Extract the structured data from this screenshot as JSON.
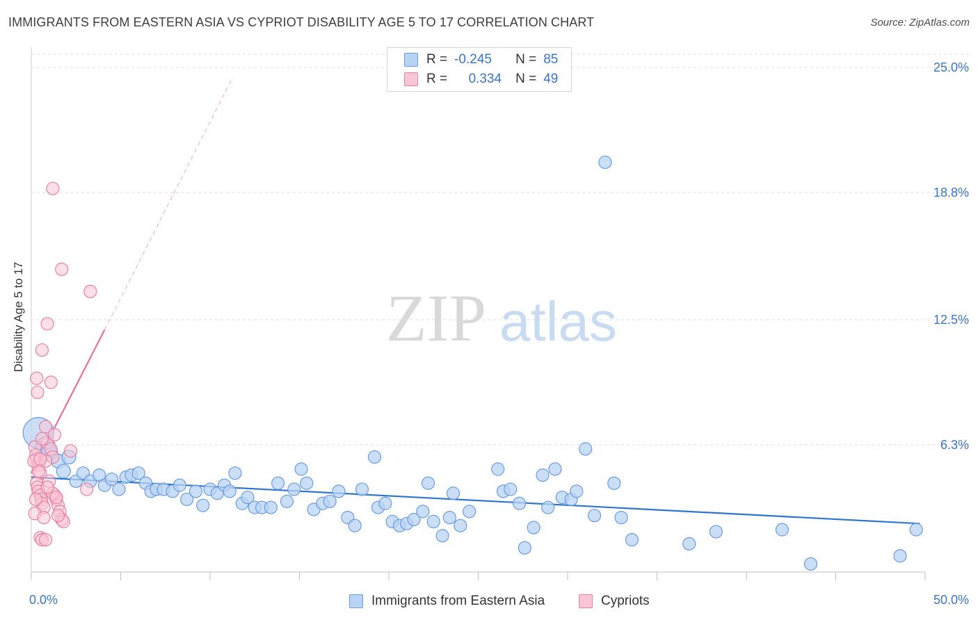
{
  "title": "IMMIGRANTS FROM EASTERN ASIA VS CYPRIOT DISABILITY AGE 5 TO 17 CORRELATION CHART",
  "source": "Source: ZipAtlas.com",
  "watermark": {
    "zip": "ZIP",
    "atlas": "atlas"
  },
  "legend_top": {
    "rows": [
      {
        "r_label": "R =",
        "r_value": "-0.245",
        "n_label": "N =",
        "n_value": "85"
      },
      {
        "r_label": "R =",
        "r_value": "0.334",
        "n_label": "N =",
        "n_value": "49"
      }
    ]
  },
  "legend_bottom": {
    "series1": "Immigrants from Eastern Asia",
    "series2": "Cypriots"
  },
  "colors": {
    "blue_fill": "#b8d3f3",
    "blue_stroke": "#6a9be0",
    "blue_line": "#2e74d0",
    "pink_fill": "#f9c6d6",
    "pink_stroke": "#ea7fa2",
    "pink_line": "#e8719a",
    "tick_text": "#3a74c9",
    "grid": "#dddddd"
  },
  "chart_data": {
    "type": "scatter",
    "title": "IMMIGRANTS FROM EASTERN ASIA VS CYPRIOT DISABILITY AGE 5 TO 17 CORRELATION CHART",
    "xlabel": "",
    "ylabel": "Disability Age 5 to 17",
    "xlim": [
      0,
      50
    ],
    "ylim": [
      0,
      25
    ],
    "x_tick_labels": [
      "0.0%",
      "50.0%"
    ],
    "y_ticks": [
      6.3,
      12.5,
      18.8,
      25.0
    ],
    "y_tick_labels": [
      "6.3%",
      "12.5%",
      "18.8%",
      "25.0%"
    ],
    "series": [
      {
        "name": "Immigrants from Eastern Asia",
        "r": -0.245,
        "n": 85,
        "trend": {
          "x0": 0,
          "y0": 4.7,
          "x1": 49.7,
          "y1": 2.4
        },
        "points": [
          [
            0.4,
            6.9,
            22
          ],
          [
            0.8,
            6.2,
            14
          ],
          [
            1.0,
            5.9,
            12
          ],
          [
            1.5,
            5.5,
            10
          ],
          [
            1.8,
            5.0,
            10
          ],
          [
            2.1,
            5.7,
            10
          ],
          [
            2.5,
            4.5,
            9
          ],
          [
            2.9,
            4.9,
            9
          ],
          [
            3.3,
            4.5,
            9
          ],
          [
            3.8,
            4.8,
            9
          ],
          [
            4.1,
            4.3,
            9
          ],
          [
            4.5,
            4.6,
            9
          ],
          [
            4.9,
            4.1,
            9
          ],
          [
            5.3,
            4.7,
            9
          ],
          [
            5.6,
            4.8,
            9
          ],
          [
            6.0,
            4.9,
            9
          ],
          [
            6.4,
            4.4,
            9
          ],
          [
            6.7,
            4.0,
            9
          ],
          [
            7.0,
            4.1,
            9
          ],
          [
            7.4,
            4.1,
            9
          ],
          [
            7.9,
            4.0,
            9
          ],
          [
            8.3,
            4.3,
            9
          ],
          [
            8.7,
            3.6,
            9
          ],
          [
            9.2,
            4.0,
            9
          ],
          [
            9.6,
            3.3,
            9
          ],
          [
            10.0,
            4.1,
            9
          ],
          [
            10.4,
            3.9,
            9
          ],
          [
            10.8,
            4.3,
            9
          ],
          [
            11.1,
            4.0,
            9
          ],
          [
            11.4,
            4.9,
            9
          ],
          [
            11.8,
            3.4,
            9
          ],
          [
            12.1,
            3.7,
            9
          ],
          [
            12.5,
            3.2,
            9
          ],
          [
            12.9,
            3.2,
            9
          ],
          [
            13.4,
            3.2,
            9
          ],
          [
            13.8,
            4.4,
            9
          ],
          [
            14.3,
            3.5,
            9
          ],
          [
            14.7,
            4.1,
            9
          ],
          [
            15.1,
            5.1,
            9
          ],
          [
            15.4,
            4.4,
            9
          ],
          [
            15.8,
            3.1,
            9
          ],
          [
            16.3,
            3.4,
            9
          ],
          [
            16.7,
            3.5,
            9
          ],
          [
            17.2,
            4.0,
            9
          ],
          [
            17.7,
            2.7,
            9
          ],
          [
            18.1,
            2.3,
            9
          ],
          [
            18.5,
            4.1,
            9
          ],
          [
            19.2,
            5.7,
            9
          ],
          [
            19.4,
            3.2,
            9
          ],
          [
            19.8,
            3.4,
            9
          ],
          [
            20.2,
            2.5,
            9
          ],
          [
            20.6,
            2.3,
            9
          ],
          [
            21.0,
            2.4,
            9
          ],
          [
            21.4,
            2.6,
            9
          ],
          [
            21.9,
            3.0,
            9
          ],
          [
            22.2,
            4.4,
            9
          ],
          [
            22.5,
            2.5,
            9
          ],
          [
            23.0,
            1.8,
            9
          ],
          [
            23.4,
            2.7,
            9
          ],
          [
            23.6,
            3.9,
            9
          ],
          [
            24.0,
            2.3,
            9
          ],
          [
            24.5,
            3.0,
            9
          ],
          [
            26.1,
            5.1,
            9
          ],
          [
            26.4,
            4.0,
            9
          ],
          [
            26.8,
            4.1,
            9
          ],
          [
            27.3,
            3.4,
            9
          ],
          [
            27.6,
            1.2,
            9
          ],
          [
            28.1,
            2.2,
            9
          ],
          [
            28.6,
            4.8,
            9
          ],
          [
            28.9,
            3.2,
            9
          ],
          [
            29.3,
            5.1,
            9
          ],
          [
            29.7,
            3.7,
            9
          ],
          [
            30.2,
            3.6,
            9
          ],
          [
            30.5,
            4.0,
            9
          ],
          [
            31.0,
            6.1,
            9
          ],
          [
            31.5,
            2.8,
            9
          ],
          [
            32.1,
            20.3,
            9
          ],
          [
            32.6,
            4.4,
            9
          ],
          [
            33.0,
            2.7,
            9
          ],
          [
            33.6,
            1.6,
            9
          ],
          [
            36.8,
            1.4,
            9
          ],
          [
            38.3,
            2.0,
            9
          ],
          [
            42.0,
            2.1,
            9
          ],
          [
            43.6,
            0.4,
            9
          ],
          [
            48.6,
            0.8,
            9
          ],
          [
            49.5,
            2.1,
            9
          ]
        ]
      },
      {
        "name": "Cypriots",
        "r": 0.334,
        "n": 49,
        "trend_solid": {
          "x0": 0,
          "y0": 4.9,
          "x1": 4.1,
          "y1": 12.0
        },
        "trend_dashed": {
          "x0": 4.1,
          "y0": 12.0,
          "x1": 11.2,
          "y1": 24.4
        },
        "points": [
          [
            0.2,
            6.2,
            9
          ],
          [
            0.3,
            5.6,
            9
          ],
          [
            0.4,
            5.3,
            9
          ],
          [
            0.5,
            4.9,
            9
          ],
          [
            0.25,
            5.8,
            9
          ],
          [
            0.3,
            4.4,
            9
          ],
          [
            0.35,
            4.2,
            9
          ],
          [
            0.4,
            4.0,
            9
          ],
          [
            0.5,
            3.8,
            9
          ],
          [
            0.55,
            3.6,
            9
          ],
          [
            0.6,
            3.4,
            9
          ],
          [
            0.7,
            3.2,
            9
          ],
          [
            0.2,
            2.9,
            9
          ],
          [
            0.7,
            2.7,
            9
          ],
          [
            0.5,
            1.7,
            9
          ],
          [
            0.6,
            1.6,
            9
          ],
          [
            0.8,
            1.6,
            9
          ],
          [
            0.9,
            6.4,
            9
          ],
          [
            1.1,
            6.1,
            9
          ],
          [
            1.2,
            5.7,
            9
          ],
          [
            1.3,
            3.8,
            9
          ],
          [
            1.4,
            3.6,
            9
          ],
          [
            1.5,
            3.3,
            9
          ],
          [
            1.6,
            3.0,
            9
          ],
          [
            1.7,
            2.6,
            9
          ],
          [
            1.8,
            2.5,
            9
          ],
          [
            0.3,
            9.6,
            9
          ],
          [
            0.35,
            8.9,
            9
          ],
          [
            0.6,
            11.0,
            9
          ],
          [
            0.8,
            7.2,
            9
          ],
          [
            0.9,
            12.3,
            9
          ],
          [
            1.1,
            9.4,
            9
          ],
          [
            1.3,
            6.8,
            9
          ],
          [
            1.2,
            19.0,
            9
          ],
          [
            1.7,
            15.0,
            9
          ],
          [
            2.2,
            6.0,
            9
          ],
          [
            3.1,
            4.1,
            9
          ],
          [
            3.3,
            13.9,
            9
          ],
          [
            0.4,
            5.0,
            9
          ],
          [
            0.6,
            6.6,
            9
          ],
          [
            0.8,
            5.5,
            9
          ],
          [
            1.0,
            4.5,
            9
          ],
          [
            1.2,
            3.9,
            9
          ],
          [
            1.4,
            3.7,
            9
          ],
          [
            0.15,
            5.5,
            9
          ],
          [
            0.25,
            3.6,
            9
          ],
          [
            1.5,
            2.8,
            9
          ],
          [
            0.9,
            4.2,
            9
          ],
          [
            0.5,
            5.6,
            9
          ]
        ]
      }
    ]
  }
}
